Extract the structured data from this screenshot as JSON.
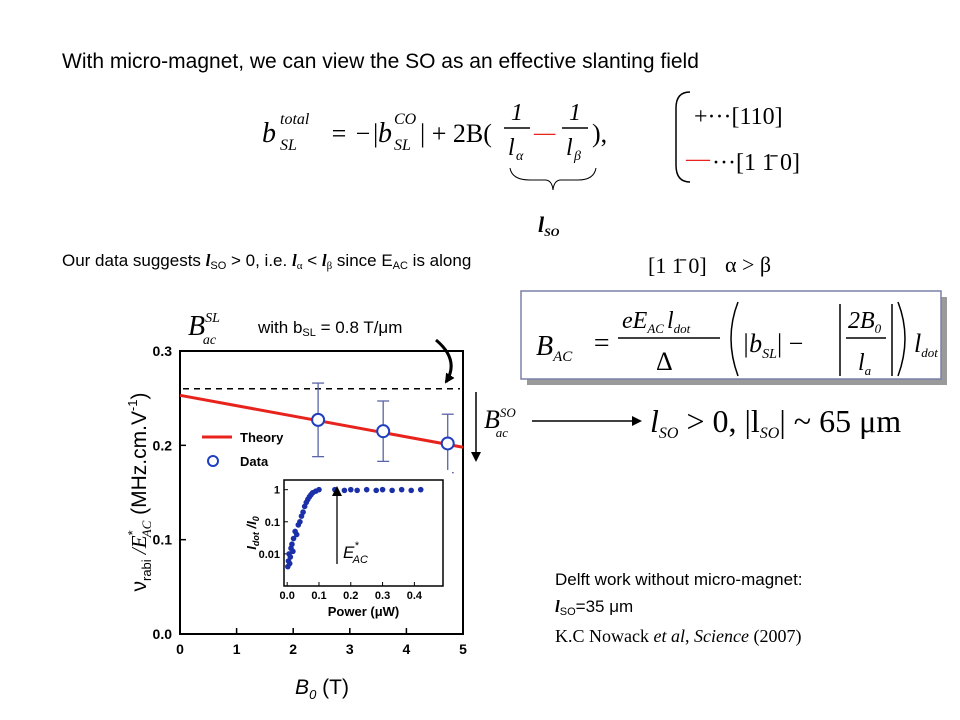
{
  "heading": "With micro-magnet, we can view the SO as an effective slanting field",
  "equation": {
    "b": "b",
    "b_sup": "total",
    "b_sub": "SL",
    "rel": "= −|",
    "b2": "b",
    "b2_sup": "CO",
    "b2_sub": "SL",
    "mid": "| + 2B(",
    "num1": "1",
    "den1": "l",
    "den1_sub": "α",
    "minus": "—",
    "num2": "1",
    "den2": "l",
    "den2_sub": "β",
    "end": "),"
  },
  "matrix": {
    "row1": "+···[110]",
    "row2_sign": "—",
    "row2": "···[1 1̄ 0]"
  },
  "brace_label": {
    "l": "l",
    "sub": "SO"
  },
  "statement": [
    "Our data suggests ",
    "l",
    "SO",
    " > 0, i.e. ",
    "l",
    "α",
    " < ",
    "l",
    "β",
    " since E",
    "AC",
    " is along "
  ],
  "direction": "[1 1̄ 0]",
  "relation": "α > β",
  "field_label": {
    "b": "B",
    "sup": "SL",
    "sub": "ac",
    "text": "with b",
    "text_sub": "SL",
    "text_end": " = 0.8 T/μm"
  },
  "formula": {
    "lhs": "B",
    "lhs_sub": "AC",
    "eq": "=",
    "num": "eE",
    "num_sub": "AC",
    "num2": "l",
    "num2_sub": "dot",
    "den": "Δ",
    "b": "|b",
    "b_sub": "SL",
    "b_end": "| −",
    "num3": "2B",
    "num3_sub": "0",
    "den3": "l",
    "den3_sub": "a",
    "end": "l",
    "end_sub": "dot"
  },
  "so_label": {
    "b": "B",
    "sup": "SO",
    "sub": "ac"
  },
  "result": {
    "l": "l",
    "sub": "SO",
    "mid": " > 0, |l",
    "sub2": "SO",
    "end": "| ~ 65 μm"
  },
  "note": {
    "line1": "Delft work without micro-magnet:",
    "l": "l",
    "sub": "SO",
    "value": "=35 μm",
    "author": "K.C Nowack ",
    "etal": "et al",
    "comma": ", ",
    "journal": "Science",
    "year": " (2007)"
  },
  "chart_data": [
    {
      "type": "line",
      "xlabel": [
        "B",
        "0",
        " (T)"
      ],
      "ylabel": [
        "ν",
        "rabi",
        " /E",
        "*",
        "AC",
        " (MHz.cm.V",
        "-1",
        ")"
      ],
      "xlim": [
        0,
        5
      ],
      "xticks": [
        0,
        1,
        2,
        3,
        4,
        5
      ],
      "ylim": [
        0,
        0.3
      ],
      "yticks": [
        {
          "value": 0,
          "label": "0.0"
        },
        0.1,
        0.2,
        0.3
      ],
      "reference_line": 0.26,
      "series": [
        {
          "name": "Theory",
          "color": "#e8231c",
          "x": [
            0,
            5
          ],
          "values": [
            0.253,
            0.198
          ]
        },
        {
          "name": "Data",
          "color": "#1f3fbf",
          "x": [
            2.44,
            3.59,
            4.73
          ],
          "values": [
            0.227,
            0.215,
            0.202
          ],
          "errors": [
            0.039,
            0.032,
            0.031
          ]
        }
      ]
    },
    {
      "type": "scatter",
      "xlabel": "Power (μW)",
      "ylabel": [
        "I",
        "dot",
        " /I",
        "0"
      ],
      "annotation": [
        "E",
        "*",
        "AC"
      ],
      "xlim": [
        -0.01,
        0.49
      ],
      "xticks": [
        {
          "value": 0,
          "label": "0.0"
        },
        0.1,
        0.2,
        0.3,
        0.4
      ],
      "ylim": [
        0.001,
        2
      ],
      "log_y": true,
      "yticks": [
        0.01,
        0.1,
        1
      ],
      "series": [
        {
          "color": "#1a2fa8",
          "x": [
            0.002,
            0.004,
            0.006,
            0.008,
            0.01,
            0.012,
            0.015,
            0.018,
            0.02,
            0.025,
            0.03,
            0.035,
            0.04,
            0.045,
            0.05,
            0.055,
            0.06,
            0.065,
            0.07,
            0.075,
            0.08,
            0.09,
            0.1,
            0.15,
            0.18,
            0.2,
            0.22,
            0.25,
            0.28,
            0.3,
            0.33,
            0.36,
            0.39,
            0.42
          ],
          "values": [
            0.004,
            0.006,
            0.01,
            0.005,
            0.008,
            0.015,
            0.02,
            0.012,
            0.03,
            0.05,
            0.04,
            0.08,
            0.1,
            0.15,
            0.2,
            0.3,
            0.4,
            0.5,
            0.6,
            0.7,
            0.8,
            0.9,
            1.0,
            1.0,
            0.95,
            1.0,
            0.95,
            1.0,
            0.95,
            1.0,
            0.95,
            1.0,
            0.95,
            1.0
          ]
        }
      ]
    }
  ]
}
